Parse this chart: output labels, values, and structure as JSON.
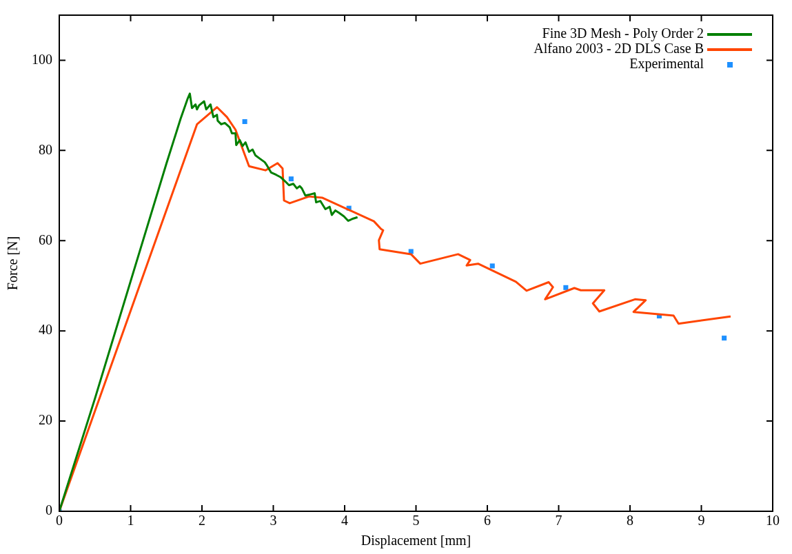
{
  "chart_data": {
    "type": "line",
    "xlabel": "Displacement [mm]",
    "ylabel": "Force [N]",
    "xlim": [
      0,
      10
    ],
    "ylim": [
      0,
      110
    ],
    "xticks": [
      0,
      1,
      2,
      3,
      4,
      5,
      6,
      7,
      8,
      9,
      10
    ],
    "yticks": [
      0,
      20,
      40,
      60,
      80,
      100
    ],
    "grid": false,
    "legend": "top right",
    "line_style": "solid",
    "series": [
      {
        "name": "Fine 3D Mesh - Poly Order 2",
        "marker": "none",
        "color": "#007f00",
        "x": [
          0,
          0.5,
          1,
          1.5,
          1.7,
          1.8,
          1.83,
          1.86,
          1.91,
          1.93,
          1.96,
          2.03,
          2.06,
          2.12,
          2.16,
          2.21,
          2.22,
          2.27,
          2.32,
          2.39,
          2.42,
          2.47,
          2.48,
          2.53,
          2.57,
          2.61,
          2.66,
          2.71,
          2.75,
          2.81,
          2.88,
          2.91,
          2.97,
          3.04,
          3.1,
          3.17,
          3.22,
          3.28,
          3.33,
          3.37,
          3.4,
          3.45,
          3.53,
          3.58,
          3.6,
          3.66,
          3.73,
          3.79,
          3.82,
          3.87,
          3.92,
          3.99,
          4.02,
          4.05,
          4.12,
          4.18
        ],
        "values": [
          0,
          25,
          51,
          77,
          87,
          91.5,
          92.6,
          89.4,
          90.2,
          89.1,
          90.0,
          90.9,
          89.1,
          90.2,
          87.4,
          87.9,
          86.6,
          85.8,
          86.1,
          85.1,
          83.8,
          83.8,
          81.2,
          82.3,
          81.0,
          81.8,
          79.7,
          80.2,
          78.9,
          78.2,
          77.4,
          76.7,
          75.1,
          74.6,
          74.1,
          73.1,
          72.3,
          72.6,
          71.6,
          72.1,
          71.6,
          70.0,
          70.3,
          70.5,
          68.5,
          68.8,
          67.0,
          67.5,
          65.7,
          66.7,
          66.2,
          65.4,
          64.9,
          64.4,
          64.9,
          65.2
        ]
      },
      {
        "name": "Alfano 2003 - 2D DLS Case B",
        "marker": "none",
        "color": "#ff4500",
        "x": [
          0,
          1.93,
          2.21,
          2.35,
          2.47,
          2.66,
          2.89,
          3.06,
          3.13,
          3.15,
          3.23,
          3.5,
          3.69,
          4.41,
          4.51,
          4.54,
          4.48,
          4.49,
          4.93,
          5.06,
          5.59,
          5.76,
          5.71,
          5.87,
          6.4,
          6.55,
          6.86,
          6.92,
          6.81,
          7.22,
          7.31,
          7.64,
          7.48,
          7.57,
          8.07,
          8.22,
          8.05,
          8.61,
          8.68,
          9.41
        ],
        "values": [
          0,
          85.8,
          89.6,
          87.4,
          84.6,
          76.5,
          75.6,
          77.2,
          76.0,
          68.9,
          68.3,
          69.8,
          69.5,
          64.3,
          62.6,
          62.3,
          60.1,
          58.1,
          57.0,
          54.9,
          57.0,
          55.7,
          54.5,
          54.9,
          50.9,
          48.9,
          50.8,
          49.7,
          47.0,
          49.5,
          49.0,
          49.0,
          46.1,
          44.3,
          47.0,
          46.8,
          44.2,
          43.4,
          41.6,
          43.2
        ]
      },
      {
        "name": "Experimental",
        "type": "scatter",
        "marker": "square",
        "color": "#1e90ff",
        "x": [
          0,
          2.6,
          3.25,
          4.06,
          4.93,
          6.07,
          7.1,
          8.41,
          9.32
        ],
        "values": [
          0,
          86.4,
          73.7,
          67.2,
          57.6,
          54.4,
          49.6,
          43.3,
          38.4
        ]
      }
    ]
  }
}
